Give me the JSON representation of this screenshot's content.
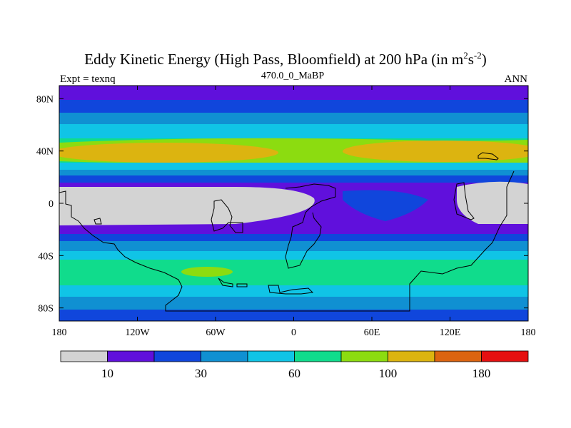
{
  "title": {
    "main": "Eddy Kinetic Energy (High Pass, Bloomfield) at 200 hPa (in m",
    "sup1": "2",
    "mid": "s",
    "sup2": "-2",
    "end": ")"
  },
  "subtitle": {
    "left": "Expt = texnq",
    "center": "470.0_0_MaBP",
    "right": "ANN"
  },
  "map": {
    "lon_ticks": [
      "180",
      "120W",
      "60W",
      "0",
      "60E",
      "120E",
      "180"
    ],
    "lon_values": [
      -180,
      -120,
      -60,
      0,
      60,
      120,
      180
    ],
    "lat_ticks": [
      "80N",
      "40N",
      "0",
      "40S",
      "80S"
    ],
    "lat_values": [
      80,
      40,
      0,
      -40,
      -80
    ],
    "lat_range": [
      -90,
      90
    ],
    "lon_range": [
      -180,
      180
    ]
  },
  "colorbar": {
    "colors": [
      "#d3d3d3",
      "#6010dc",
      "#1046dc",
      "#1090d2",
      "#10c4e6",
      "#10dc8c",
      "#8cdc10",
      "#dcb410",
      "#dc6410",
      "#e61010"
    ],
    "labels": [
      "10",
      "30",
      "60",
      "100",
      "180"
    ],
    "label_after_index": [
      0,
      2,
      4,
      6,
      8
    ]
  }
}
